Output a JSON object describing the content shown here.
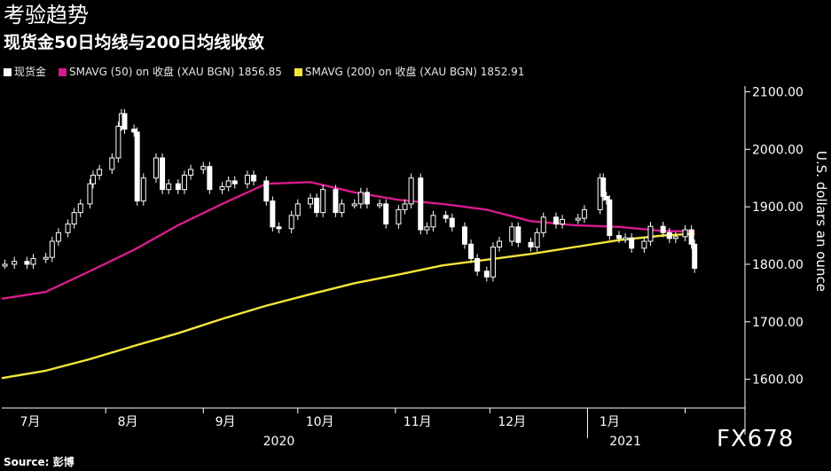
{
  "header": {
    "title": "考验趋势",
    "subtitle": "现货金50日均线与200日均线收敛"
  },
  "legend": [
    {
      "label": "现货金",
      "color": "#ffffff"
    },
    {
      "label": "SMAVG (50)  on 收盘 (XAU BGN) 1856.85",
      "color": "#d81b8c"
    },
    {
      "label": "SMAVG (200)  on 收盘 (XAU BGN) 1852.91",
      "color": "#f5e63a"
    }
  ],
  "footer": {
    "source": "Source: 彭博",
    "watermark": "FX678"
  },
  "chart_data": {
    "type": "line",
    "title": "考验趋势",
    "subtitle": "现货金50日均线与200日均线收敛",
    "ylabel": "U.S. dollars an ounce",
    "ylim": [
      1550,
      2110
    ],
    "yticks": [
      "1600.00",
      "1700.00",
      "1800.00",
      "1900.00",
      "2000.00",
      "2100.00"
    ],
    "x_month_labels": [
      "7月",
      "8月",
      "9月",
      "10月",
      "11月",
      "12月",
      "1月"
    ],
    "x_year_labels": [
      "2020",
      "2021"
    ],
    "x_range": [
      "2020-06-29",
      "2021-02-20"
    ],
    "grid": false,
    "colors": {
      "candle": "#ffffff",
      "sma50": "#d81b8c",
      "sma200": "#f5e63a"
    },
    "series": [
      {
        "name": "现货金",
        "type": "candlestick-close",
        "points": [
          [
            "2020-06-30",
            1800
          ],
          [
            "2020-07-03",
            1805
          ],
          [
            "2020-07-07",
            1800
          ],
          [
            "2020-07-09",
            1810
          ],
          [
            "2020-07-13",
            1812
          ],
          [
            "2020-07-15",
            1840
          ],
          [
            "2020-07-17",
            1855
          ],
          [
            "2020-07-20",
            1870
          ],
          [
            "2020-07-22",
            1890
          ],
          [
            "2020-07-24",
            1905
          ],
          [
            "2020-07-27",
            1940
          ],
          [
            "2020-07-28",
            1955
          ],
          [
            "2020-07-30",
            1965
          ],
          [
            "2020-08-03",
            1985
          ],
          [
            "2020-08-05",
            2040
          ],
          [
            "2020-08-06",
            2062
          ],
          [
            "2020-08-07",
            2035
          ],
          [
            "2020-08-10",
            2030
          ],
          [
            "2020-08-11",
            1910
          ],
          [
            "2020-08-13",
            1950
          ],
          [
            "2020-08-17",
            1985
          ],
          [
            "2020-08-19",
            1930
          ],
          [
            "2020-08-21",
            1940
          ],
          [
            "2020-08-24",
            1930
          ],
          [
            "2020-08-26",
            1955
          ],
          [
            "2020-08-28",
            1965
          ],
          [
            "2020-09-01",
            1970
          ],
          [
            "2020-09-03",
            1930
          ],
          [
            "2020-09-07",
            1935
          ],
          [
            "2020-09-09",
            1945
          ],
          [
            "2020-09-11",
            1940
          ],
          [
            "2020-09-15",
            1955
          ],
          [
            "2020-09-17",
            1945
          ],
          [
            "2020-09-21",
            1910
          ],
          [
            "2020-09-23",
            1865
          ],
          [
            "2020-09-25",
            1862
          ],
          [
            "2020-09-29",
            1885
          ],
          [
            "2020-10-01",
            1905
          ],
          [
            "2020-10-05",
            1915
          ],
          [
            "2020-10-07",
            1890
          ],
          [
            "2020-10-09",
            1930
          ],
          [
            "2020-10-13",
            1890
          ],
          [
            "2020-10-15",
            1905
          ],
          [
            "2020-10-19",
            1905
          ],
          [
            "2020-10-21",
            1925
          ],
          [
            "2020-10-23",
            1905
          ],
          [
            "2020-10-27",
            1905
          ],
          [
            "2020-10-29",
            1870
          ],
          [
            "2020-11-02",
            1895
          ],
          [
            "2020-11-04",
            1905
          ],
          [
            "2020-11-06",
            1950
          ],
          [
            "2020-11-09",
            1860
          ],
          [
            "2020-11-11",
            1865
          ],
          [
            "2020-11-13",
            1885
          ],
          [
            "2020-11-17",
            1880
          ],
          [
            "2020-11-19",
            1865
          ],
          [
            "2020-11-23",
            1835
          ],
          [
            "2020-11-25",
            1810
          ],
          [
            "2020-11-27",
            1788
          ],
          [
            "2020-11-30",
            1778
          ],
          [
            "2020-12-02",
            1830
          ],
          [
            "2020-12-04",
            1840
          ],
          [
            "2020-12-08",
            1865
          ],
          [
            "2020-12-10",
            1838
          ],
          [
            "2020-12-14",
            1830
          ],
          [
            "2020-12-16",
            1855
          ],
          [
            "2020-12-18",
            1882
          ],
          [
            "2020-12-22",
            1870
          ],
          [
            "2020-12-24",
            1878
          ],
          [
            "2020-12-29",
            1880
          ],
          [
            "2020-12-31",
            1895
          ],
          [
            "2021-01-05",
            1950
          ],
          [
            "2021-01-06",
            1918
          ],
          [
            "2021-01-07",
            1912
          ],
          [
            "2021-01-08",
            1850
          ],
          [
            "2021-01-11",
            1845
          ],
          [
            "2021-01-13",
            1846
          ],
          [
            "2021-01-15",
            1828
          ],
          [
            "2021-01-19",
            1840
          ],
          [
            "2021-01-21",
            1866
          ],
          [
            "2021-01-25",
            1855
          ],
          [
            "2021-01-27",
            1845
          ],
          [
            "2021-01-29",
            1848
          ],
          [
            "2021-02-01",
            1860
          ],
          [
            "2021-02-03",
            1835
          ],
          [
            "2021-02-04",
            1793
          ]
        ]
      },
      {
        "name": "SMAVG (50)  on 收盘 (XAU BGN)",
        "last_value": 1856.85,
        "points": [
          [
            "2020-06-29",
            1740
          ],
          [
            "2020-07-13",
            1752
          ],
          [
            "2020-07-27",
            1788
          ],
          [
            "2020-08-10",
            1825
          ],
          [
            "2020-08-24",
            1868
          ],
          [
            "2020-09-07",
            1905
          ],
          [
            "2020-09-21",
            1940
          ],
          [
            "2020-10-05",
            1943
          ],
          [
            "2020-10-19",
            1925
          ],
          [
            "2020-11-02",
            1912
          ],
          [
            "2020-11-16",
            1905
          ],
          [
            "2020-11-30",
            1895
          ],
          [
            "2020-12-14",
            1875
          ],
          [
            "2020-12-28",
            1868
          ],
          [
            "2021-01-11",
            1865
          ],
          [
            "2021-01-25",
            1858
          ],
          [
            "2021-02-04",
            1856.85
          ]
        ]
      },
      {
        "name": "SMAVG (200)  on 收盘 (XAU BGN)",
        "last_value": 1852.91,
        "points": [
          [
            "2020-06-29",
            1602
          ],
          [
            "2020-07-13",
            1615
          ],
          [
            "2020-07-27",
            1635
          ],
          [
            "2020-08-10",
            1658
          ],
          [
            "2020-08-24",
            1680
          ],
          [
            "2020-09-07",
            1705
          ],
          [
            "2020-09-21",
            1728
          ],
          [
            "2020-10-05",
            1748
          ],
          [
            "2020-10-19",
            1767
          ],
          [
            "2020-11-02",
            1782
          ],
          [
            "2020-11-16",
            1798
          ],
          [
            "2020-11-30",
            1808
          ],
          [
            "2020-12-14",
            1818
          ],
          [
            "2020-12-28",
            1830
          ],
          [
            "2021-01-11",
            1842
          ],
          [
            "2021-01-25",
            1850
          ],
          [
            "2021-02-04",
            1852.91
          ]
        ]
      }
    ]
  }
}
